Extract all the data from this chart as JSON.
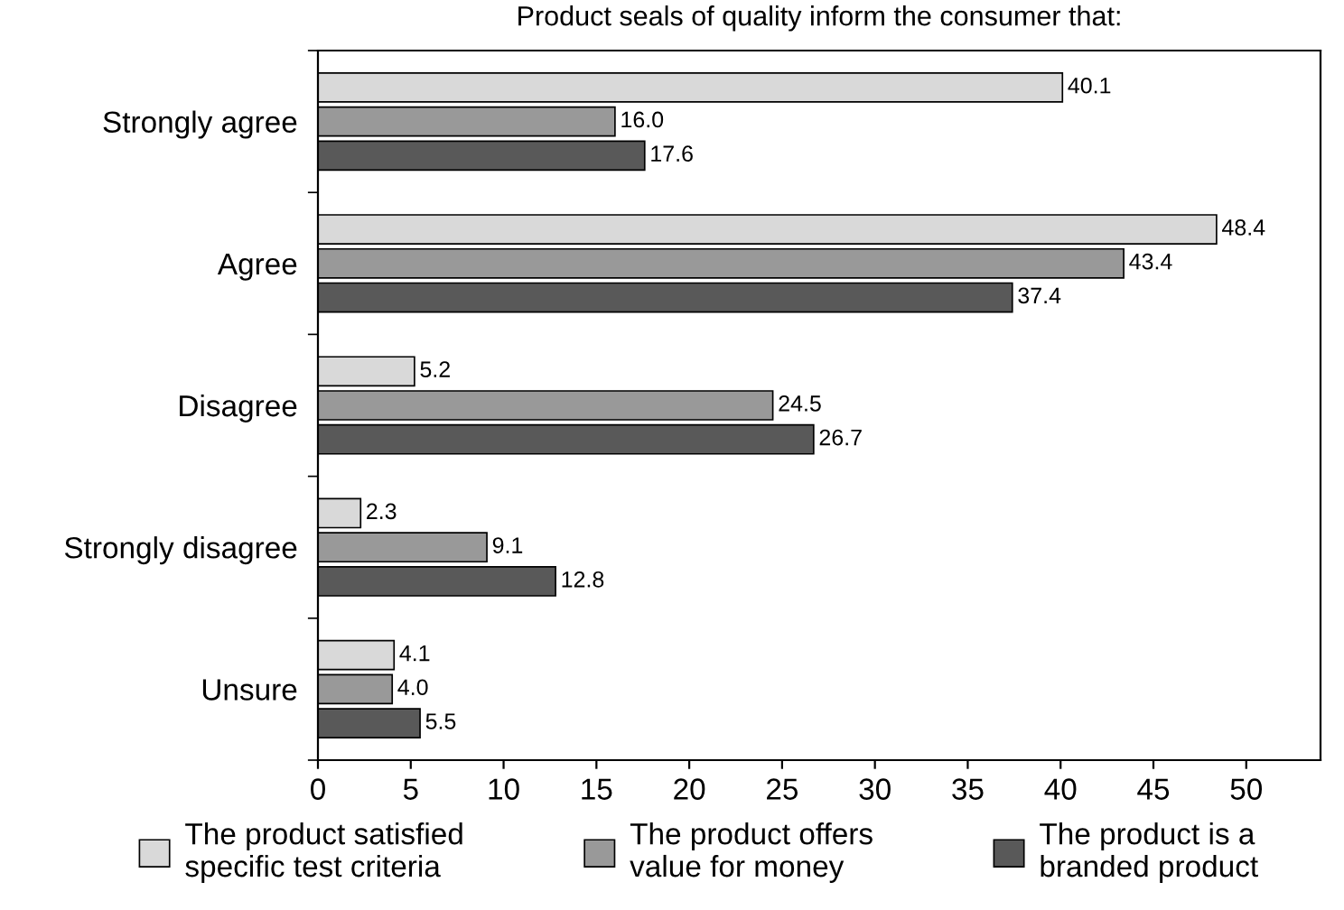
{
  "chart_data": {
    "type": "bar",
    "orientation": "horizontal",
    "title": "Product seals of quality inform the consumer that:",
    "categories": [
      "Strongly agree",
      "Agree",
      "Disagree",
      "Strongly disagree",
      "Unsure"
    ],
    "series": [
      {
        "name": "The product satisfied\nspecific test criteria",
        "color": "#d9d9d9",
        "values": [
          40.1,
          48.4,
          5.2,
          2.3,
          4.1
        ],
        "value_labels": [
          "40.1",
          "48.4",
          "5.2",
          "2.3",
          "4.1"
        ]
      },
      {
        "name": "The product offers\nvalue for money",
        "color": "#999999",
        "values": [
          16.0,
          43.4,
          24.5,
          9.1,
          4.0
        ],
        "value_labels": [
          "16.0",
          "43.4",
          "24.5",
          "9.1",
          "4.0"
        ]
      },
      {
        "name": "The product is a\nbranded product",
        "color": "#595959",
        "values": [
          17.6,
          37.4,
          26.7,
          12.8,
          5.5
        ],
        "value_labels": [
          "17.6",
          "37.4",
          "26.7",
          "12.8",
          "5.5"
        ]
      }
    ],
    "xlim": [
      0,
      54
    ],
    "xticks": [
      0,
      5,
      10,
      15,
      20,
      25,
      30,
      35,
      40,
      45,
      50
    ],
    "grid": false,
    "legend": "bottom"
  }
}
